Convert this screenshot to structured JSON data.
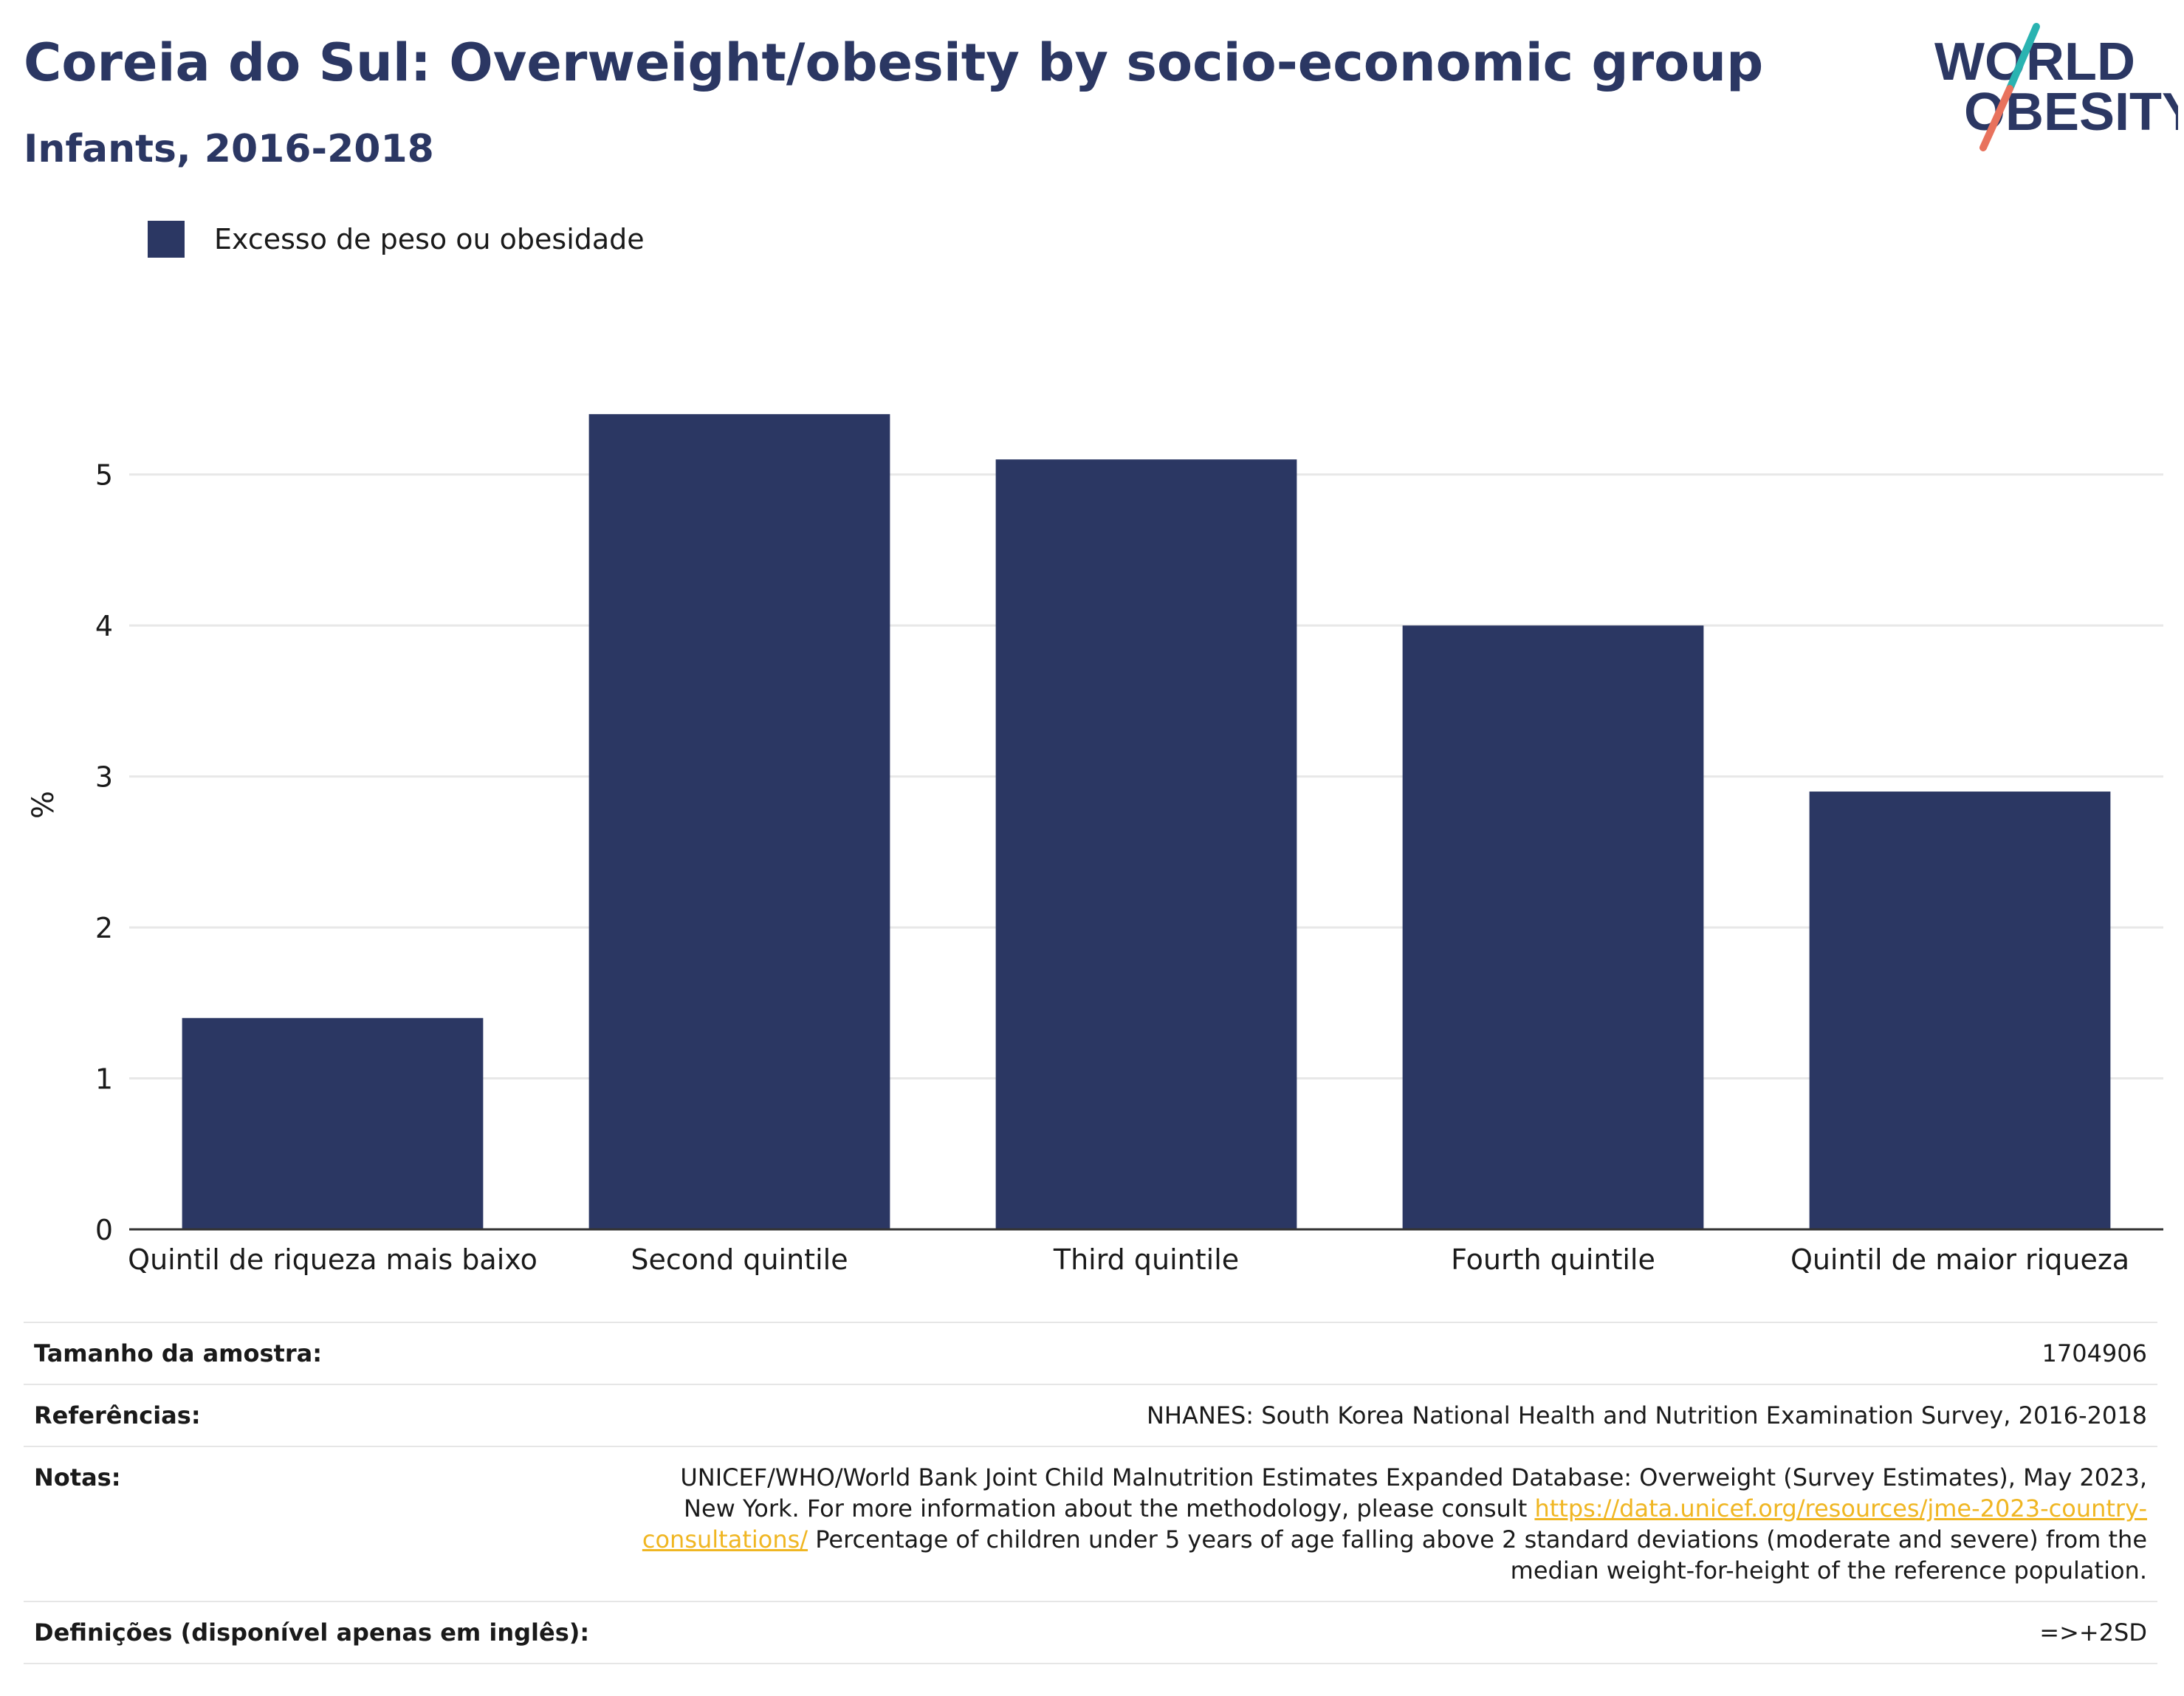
{
  "header": {
    "title": "Coreia do Sul: Overweight/obesity by socio-economic group",
    "subtitle": "Infants, 2016-2018"
  },
  "logo": {
    "line1": "WORLD",
    "line2": "OBESITY",
    "accent_teal": "#2ab3b1",
    "accent_coral": "#e8725d"
  },
  "chart_data": {
    "type": "bar",
    "categories": [
      "Quintil de riqueza mais baixo",
      "Second quintile",
      "Third quintile",
      "Fourth quintile",
      "Quintil de maior riqueza"
    ],
    "series": [
      {
        "name": "Excesso de peso ou obesidade",
        "values": [
          1.4,
          5.4,
          5.1,
          4.0,
          2.9
        ],
        "color": "#2b3763"
      }
    ],
    "ylabel": "%",
    "xlabel": "",
    "ylim": [
      0,
      5.6
    ],
    "yticks": [
      0,
      1,
      2,
      3,
      4,
      5
    ],
    "grid": true,
    "legend_position": "top-left"
  },
  "info": {
    "sample_label": "Tamanho da amostra:",
    "sample_value": "1704906",
    "references_label": "Referências:",
    "references_value": "NHANES: South Korea National Health and Nutrition Examination Survey, 2016-2018",
    "notes_label": "Notas:",
    "notes_text_1": "UNICEF/WHO/World Bank Joint Child Malnutrition Estimates Expanded Database: Overweight (Survey Estimates), May 2023, New York. For more information about the methodology, please consult ",
    "notes_link": "https://data.unicef.org/resources/jme-2023-country-consultations/",
    "notes_text_2": " Percentage of children under 5 years of age falling above 2 standard deviations (moderate and severe) from the median weight-for-height of the reference population.",
    "definitions_label": "Definições (disponível apenas em inglês):",
    "definitions_value": "=>+2SD"
  }
}
